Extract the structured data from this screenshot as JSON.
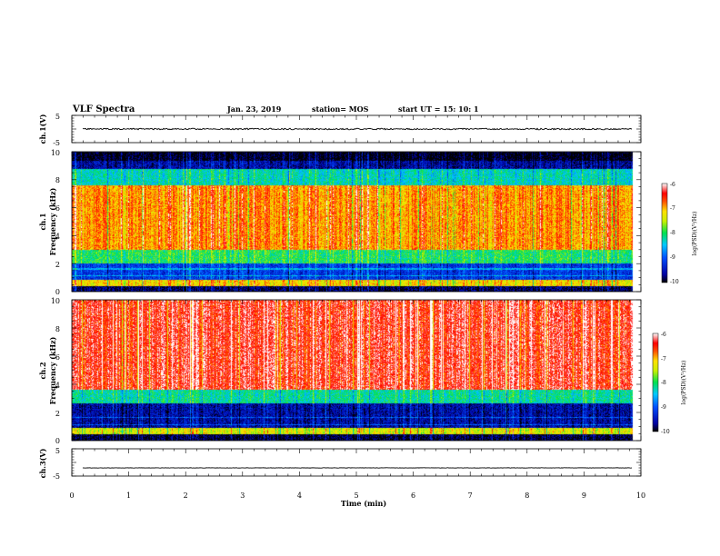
{
  "header": {
    "title": "VLF Spectra",
    "date": "Jan. 23, 2019",
    "station": "station= MOS",
    "start": "start  UT  =   15: 10: 1"
  },
  "chart_data": [
    {
      "type": "line",
      "name": "panel-ch1-waveform",
      "ylabel": "ch.1(V)",
      "ylim": [
        -5,
        5
      ],
      "yticks": [
        "5",
        "-5"
      ],
      "xlim": [
        0,
        10
      ],
      "trace_level": 0
    },
    {
      "type": "heatmap",
      "name": "panel-ch1-spectrogram",
      "ylabel": "ch.1\nFrequency (kHz)",
      "ylim": [
        0,
        10
      ],
      "yticks": [
        "0",
        "2",
        "4",
        "6",
        "8",
        "10"
      ],
      "xlim": [
        0,
        10
      ],
      "data_end_min": 9.85,
      "bands": [
        {
          "from_khz": 0.0,
          "to_khz": 0.35,
          "level": -9.8
        },
        {
          "from_khz": 0.35,
          "to_khz": 0.8,
          "level": -7.2
        },
        {
          "from_khz": 0.8,
          "to_khz": 2.0,
          "level": -9.2
        },
        {
          "from_khz": 2.0,
          "to_khz": 3.0,
          "level": -8.0
        },
        {
          "from_khz": 3.0,
          "to_khz": 7.6,
          "level": -6.9
        },
        {
          "from_khz": 7.6,
          "to_khz": 8.8,
          "level": -8.3
        },
        {
          "from_khz": 8.8,
          "to_khz": 9.4,
          "level": -9.6
        },
        {
          "from_khz": 9.4,
          "to_khz": 10.0,
          "level": -10.0
        }
      ],
      "colorbar": {
        "label": "log(PSD)(V²/Hz)",
        "min": -10,
        "max": -6,
        "ticks": [
          "-6",
          "-7",
          "-8",
          "-9",
          "-10"
        ]
      }
    },
    {
      "type": "heatmap",
      "name": "panel-ch2-spectrogram",
      "ylabel": "ch.2\nFrequency (kHz)",
      "ylim": [
        0,
        10
      ],
      "yticks": [
        "0",
        "2",
        "4",
        "6",
        "8",
        "10"
      ],
      "xlim": [
        0,
        10
      ],
      "data_end_min": 9.85,
      "bands": [
        {
          "from_khz": 0.0,
          "to_khz": 0.4,
          "level": -9.9
        },
        {
          "from_khz": 0.4,
          "to_khz": 0.9,
          "level": -7.4
        },
        {
          "from_khz": 0.9,
          "to_khz": 2.6,
          "level": -9.6
        },
        {
          "from_khz": 2.6,
          "to_khz": 3.6,
          "level": -8.2
        },
        {
          "from_khz": 3.6,
          "to_khz": 10.0,
          "level": -6.4
        }
      ],
      "colorbar": {
        "label": "log(PSD)(V²/Hz)",
        "min": -10,
        "max": -6,
        "ticks": [
          "-6",
          "-7",
          "-8",
          "-9",
          "-10"
        ]
      }
    },
    {
      "type": "line",
      "name": "panel-ch3-waveform",
      "ylabel": "ch.3(V)",
      "ylim": [
        -5,
        5
      ],
      "yticks": [
        "5",
        "-5"
      ],
      "xlim": [
        0,
        10
      ],
      "trace_level": -2
    }
  ],
  "xaxis": {
    "label": "Time (min)",
    "ticks": [
      "0",
      "1",
      "2",
      "3",
      "4",
      "5",
      "6",
      "7",
      "8",
      "9",
      "10"
    ],
    "range": [
      0,
      10
    ]
  }
}
